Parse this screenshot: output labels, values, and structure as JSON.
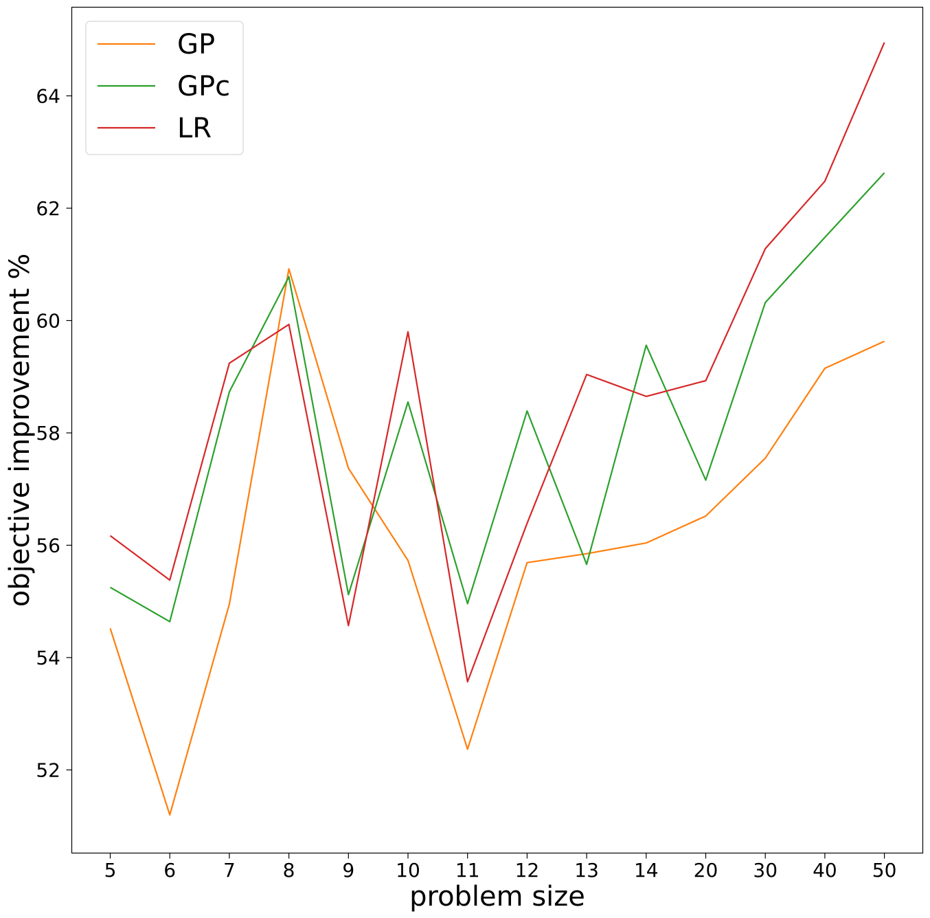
{
  "chart_data": {
    "type": "line",
    "xlabel": "problem size",
    "ylabel": "objective improvement %",
    "categories": [
      "5",
      "6",
      "7",
      "8",
      "9",
      "10",
      "11",
      "12",
      "13",
      "14",
      "20",
      "30",
      "40",
      "50"
    ],
    "y_ticks": [
      52,
      54,
      56,
      58,
      60,
      62,
      64
    ],
    "ylim": [
      50.5,
      65.6
    ],
    "grid": false,
    "legend_position": "upper-left",
    "series": [
      {
        "name": "GP",
        "color": "#ff7f0e",
        "values": [
          54.52,
          51.2,
          54.95,
          60.92,
          57.37,
          55.73,
          52.37,
          55.69,
          55.85,
          56.04,
          56.52,
          57.55,
          59.15,
          59.63
        ]
      },
      {
        "name": "GPc",
        "color": "#2ca02c",
        "values": [
          55.25,
          54.64,
          58.73,
          60.78,
          55.12,
          58.55,
          54.96,
          58.39,
          55.66,
          59.56,
          57.16,
          60.32,
          61.48,
          62.63
        ]
      },
      {
        "name": "LR",
        "color": "#d62728",
        "values": [
          56.17,
          55.38,
          59.24,
          59.93,
          54.57,
          59.8,
          53.57,
          56.39,
          59.04,
          58.65,
          58.93,
          61.28,
          62.48,
          64.95
        ]
      }
    ]
  }
}
